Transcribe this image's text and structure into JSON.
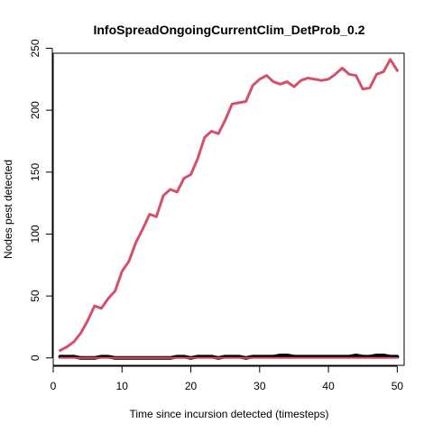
{
  "chart_data": {
    "type": "line",
    "title": "InfoSpreadOngoingCurrentClim_DetProb_0.2",
    "xlabel": "Time since incursion detected (timesteps)",
    "ylabel": "Nodes pest detected",
    "xlim": [
      0,
      51
    ],
    "ylim": [
      -6,
      246
    ],
    "x_ticks": [
      0,
      10,
      20,
      30,
      40,
      50
    ],
    "y_ticks": [
      0,
      50,
      100,
      150,
      200,
      250
    ],
    "grid": false,
    "legend": "none",
    "x": [
      1,
      2,
      3,
      4,
      5,
      6,
      7,
      8,
      9,
      10,
      11,
      12,
      13,
      14,
      15,
      16,
      17,
      18,
      19,
      20,
      21,
      22,
      23,
      24,
      25,
      26,
      27,
      28,
      29,
      30,
      31,
      32,
      33,
      34,
      35,
      36,
      37,
      38,
      39,
      40,
      41,
      42,
      43,
      44,
      45,
      46,
      47,
      48,
      49,
      50
    ],
    "series": [
      {
        "color": "#d6506b",
        "line_width": 3,
        "values": [
          6,
          9,
          13,
          20,
          30,
          42,
          40,
          48,
          54,
          70,
          78,
          93,
          104,
          116,
          114,
          131,
          136,
          134,
          145,
          148,
          161,
          178,
          183,
          181,
          192,
          205,
          206,
          207,
          220,
          225,
          228,
          223,
          221,
          223,
          219,
          224,
          226,
          225,
          224,
          225,
          229,
          234,
          229,
          228,
          217,
          218,
          229,
          231,
          241,
          232
        ]
      },
      {
        "color": "#000000",
        "line_width": 4,
        "values": [
          1,
          1,
          1,
          0,
          0,
          0,
          1,
          1,
          0,
          0,
          0,
          0,
          0,
          0,
          0,
          0,
          0,
          1,
          1,
          0,
          1,
          1,
          1,
          0,
          1,
          1,
          1,
          0,
          1,
          1,
          1,
          1,
          2,
          2,
          1,
          1,
          1,
          1,
          1,
          1,
          1,
          1,
          1,
          2,
          1,
          1,
          2,
          2,
          1,
          1
        ]
      },
      {
        "color": "#d6506b",
        "line_width": 2,
        "values": [
          0,
          0,
          0,
          0,
          0,
          0,
          0,
          0,
          0,
          0,
          0,
          0,
          0,
          0,
          0,
          0,
          0,
          0,
          0,
          0,
          0,
          0,
          0,
          0,
          0,
          0,
          0,
          0,
          0,
          0,
          0,
          0,
          0,
          0,
          0,
          0,
          0,
          0,
          0,
          0,
          0,
          0,
          0,
          0,
          0,
          0,
          0,
          0,
          0,
          0
        ]
      }
    ]
  }
}
